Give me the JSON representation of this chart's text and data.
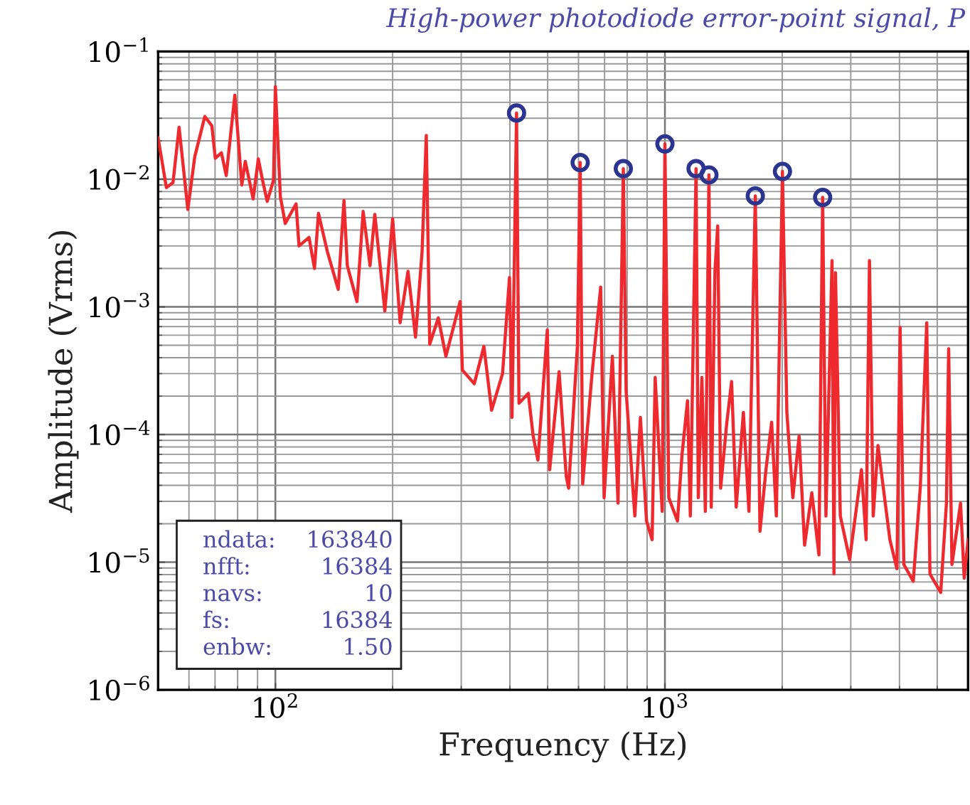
{
  "chart_data": {
    "type": "line",
    "title": "High-power photodiode error-point signal, P",
    "xlabel": "Frequency (Hz)",
    "ylabel": "Amplitude (Vrms)",
    "log": "xy",
    "grid": true,
    "legend": false,
    "xlim": [
      50,
      6000
    ],
    "xticks": [
      {
        "value": 100,
        "label": "10$^{2}$"
      },
      {
        "value": 1000,
        "label": "10$^{3}$"
      }
    ],
    "ylim": [
      1e-06,
      0.1
    ],
    "yticks": [
      {
        "value": 1e-06,
        "label": "10$^{−6}$"
      },
      {
        "value": 1e-05,
        "label": "10$^{−5}$"
      },
      {
        "value": 0.0001,
        "label": "10$^{−4}$"
      },
      {
        "value": 0.001,
        "label": "10$^{−3}$"
      },
      {
        "value": 0.01,
        "label": "10$^{−2}$"
      },
      {
        "value": 0.1,
        "label": "10$^{−1}$"
      }
    ],
    "annotations": [
      "ndata: 163840",
      "nfft: 16384",
      "navs: 10",
      "fs: 16384",
      "enbw: 1.50"
    ],
    "series": [
      {
        "color": "#ee2a2e",
        "marker": "none",
        "line_style": "solid",
        "x": [
          50,
          52.5,
          54.6,
          56.6,
          59.6,
          62.1,
          65.9,
          68.7,
          70.1,
          72.7,
          74.8,
          78.7,
          82,
          83.7,
          87.7,
          90.4,
          92.7,
          95.3,
          98.9,
          100,
          103,
          106,
          113,
          115,
          122,
          126,
          129,
          136,
          145,
          150,
          153,
          162,
          168,
          175,
          180,
          191,
          200,
          209,
          219,
          229,
          238,
          244,
          249,
          262,
          274,
          298,
          302,
          324,
          343,
          359,
          383,
          399,
          405,
          416,
          422,
          446,
          459,
          472,
          499,
          506,
          535,
          558,
          566,
          596,
          606,
          615,
          650,
          684,
          698,
          733,
          758,
          782,
          795,
          837,
          865,
          897,
          927,
          944,
          984,
          1000,
          1023,
          1077,
          1106,
          1143,
          1162,
          1202,
          1218,
          1244,
          1270,
          1297,
          1315,
          1344,
          1366,
          1390,
          1442,
          1483,
          1524,
          1590,
          1643,
          1706,
          1754,
          1817,
          1879,
          1932,
          2003,
          2056,
          2130,
          2210,
          2283,
          2383,
          2485,
          2540,
          2590,
          2685,
          2716,
          2740,
          2820,
          2980,
          3195,
          3284,
          3350,
          3425,
          3523,
          3780,
          3940,
          4015,
          4105,
          4340,
          4525,
          4700,
          4790,
          5105,
          5280,
          5350,
          5455,
          5740,
          5865,
          6000
        ],
        "values": [
          0.0211,
          0.0086,
          0.0094,
          0.0255,
          0.0058,
          0.015,
          0.031,
          0.0262,
          0.0146,
          0.0161,
          0.0107,
          0.0455,
          0.009,
          0.0138,
          0.007,
          0.0144,
          0.0098,
          0.0067,
          0.0098,
          0.053,
          0.0073,
          0.0045,
          0.0064,
          0.003,
          0.0035,
          0.002,
          0.0054,
          0.0027,
          0.00137,
          0.0068,
          0.0021,
          0.0011,
          0.0056,
          0.0021,
          0.0053,
          0.00093,
          0.0049,
          0.00075,
          0.0019,
          0.00058,
          0.0027,
          0.022,
          0.00051,
          0.00082,
          0.00041,
          0.0011,
          0.00032,
          0.00025,
          0.00049,
          0.000155,
          0.0003,
          0.0017,
          0.000136,
          0.033,
          0.000176,
          0.00021,
          9.7e-05,
          6.3e-05,
          0.00066,
          5.3e-05,
          0.00031,
          4.7e-05,
          3.8e-05,
          0.00049,
          0.0135,
          4.1e-05,
          0.0003,
          0.00143,
          3.2e-05,
          0.00041,
          2.9e-05,
          0.0121,
          0.00022,
          2.3e-05,
          0.000136,
          2.1e-05,
          1.5e-05,
          0.00028,
          2.5e-05,
          0.0189,
          3.2e-05,
          2.1e-05,
          6.9e-05,
          0.000184,
          2.3e-05,
          0.0121,
          3.2e-05,
          0.00028,
          2.5e-05,
          0.0108,
          2.7e-05,
          0.0019,
          0.0043,
          3.8e-05,
          0.000125,
          0.00026,
          2.7e-05,
          0.000149,
          2.5e-05,
          0.0074,
          1.75e-05,
          5.3e-05,
          0.000125,
          2.3e-05,
          0.0115,
          0.000149,
          3.2e-05,
          9.7e-05,
          1.36e-05,
          3.5e-05,
          1.14e-05,
          0.0072,
          2.3e-05,
          0.0023,
          8.1e-06,
          0.00185,
          2.3e-05,
          1.05e-05,
          5.3e-05,
          1.5e-05,
          0.0023,
          2.3e-05,
          8.2e-05,
          1.5e-05,
          8.9e-06,
          0.00069,
          9.6e-06,
          7.1e-06,
          3.9e-05,
          0.00075,
          8.1e-06,
          5.8e-06,
          2.9e-05,
          0.00047,
          9.6e-06,
          2.9e-05,
          7.5e-06,
          1.5e-05
        ]
      },
      {
        "type": "scatter",
        "color": "#2b3591",
        "marker": "circle",
        "x": [
          416,
          606,
          782,
          1000,
          1202,
          1297,
          1706,
          2003,
          2540
        ],
        "values": [
          0.033,
          0.0135,
          0.0121,
          0.0189,
          0.0121,
          0.0108,
          0.0074,
          0.0115,
          0.0072
        ]
      }
    ]
  }
}
